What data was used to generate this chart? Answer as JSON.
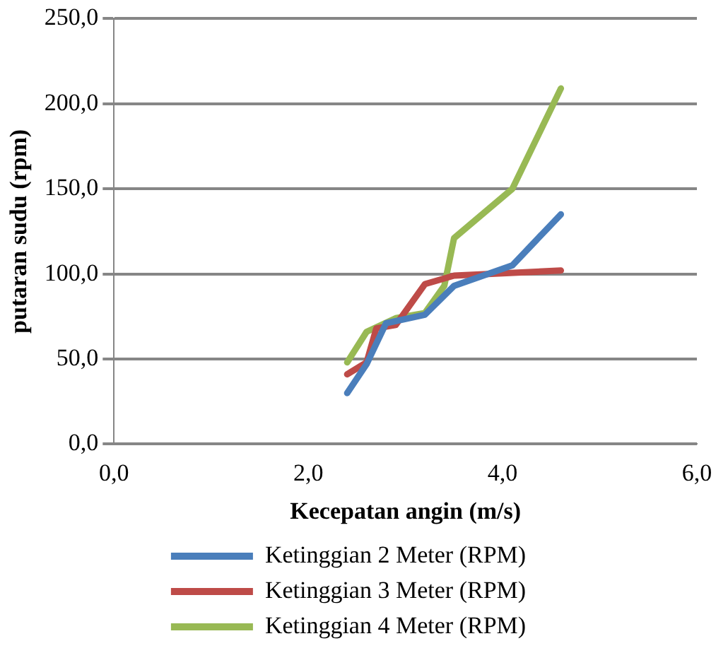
{
  "chart_data": {
    "type": "line",
    "xlabel": "Kecepatan angin (m/s)",
    "ylabel": "putaran sudu (rpm)",
    "xlim": [
      0,
      6
    ],
    "xticks": [
      {
        "value": 0,
        "label": "0,0"
      },
      {
        "value": 2,
        "label": "2,0"
      },
      {
        "value": 4,
        "label": "4,0"
      },
      {
        "value": 6,
        "label": "6,0"
      }
    ],
    "ylim": [
      0,
      250
    ],
    "yticks": [
      {
        "value": 0,
        "label": "0,0"
      },
      {
        "value": 50,
        "label": "50,0"
      },
      {
        "value": 100,
        "label": "100,0"
      },
      {
        "value": 150,
        "label": "150,0"
      },
      {
        "value": 200,
        "label": "200,0"
      },
      {
        "value": 250,
        "label": "250,0"
      }
    ],
    "grid": "y",
    "legend": "bottom",
    "marker": "none",
    "line_style": "solid",
    "series": [
      {
        "name": "Ketinggian 2 Meter (RPM)",
        "color": "#4a7ebb",
        "x": [
          2.4,
          2.6,
          2.8,
          3.2,
          3.5,
          4.1,
          4.6
        ],
        "values": [
          30,
          47,
          71,
          76,
          93,
          105,
          135
        ]
      },
      {
        "name": "Ketinggian 3 Meter (RPM)",
        "color": "#be4b48",
        "x": [
          2.4,
          2.6,
          2.7,
          2.9,
          3.2,
          3.5,
          4.6
        ],
        "values": [
          41,
          48,
          68,
          70,
          94,
          99,
          102
        ]
      },
      {
        "name": "Ketinggian 4 Meter (RPM)",
        "color": "#98b954",
        "x": [
          2.4,
          2.6,
          2.9,
          3.2,
          3.4,
          3.5,
          4.1,
          4.6
        ],
        "values": [
          48,
          66,
          74,
          77,
          93,
          121,
          150,
          209
        ]
      }
    ]
  }
}
